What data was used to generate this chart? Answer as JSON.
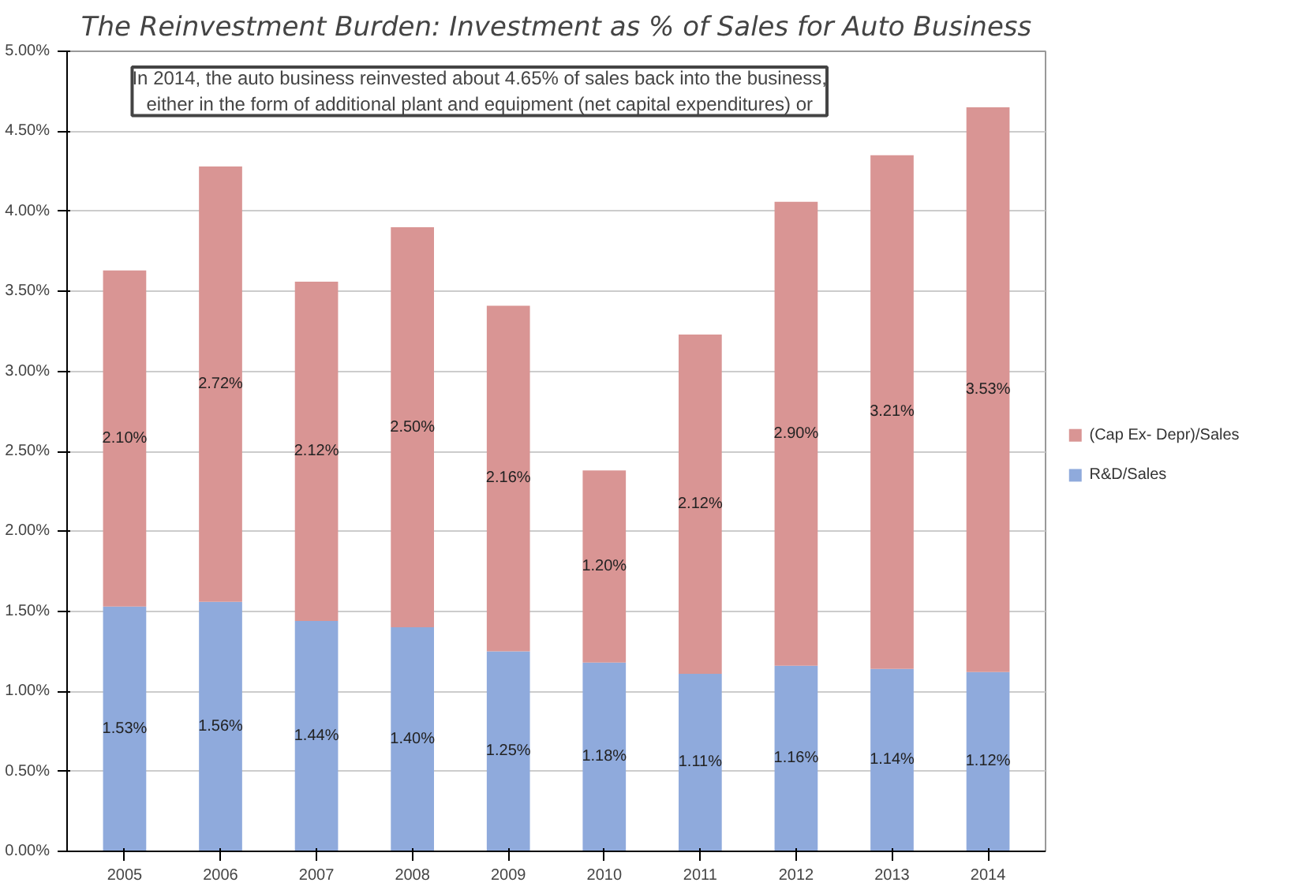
{
  "chart_data": {
    "type": "bar",
    "stacked": true,
    "title": "The Reinvestment Burden: Investment as % of Sales for Auto Business",
    "categories": [
      "2005",
      "2006",
      "2007",
      "2008",
      "2009",
      "2010",
      "2011",
      "2012",
      "2013",
      "2014"
    ],
    "series": [
      {
        "name": "R&D/Sales",
        "color": "#8faadc",
        "values": [
          1.53,
          1.56,
          1.44,
          1.4,
          1.25,
          1.18,
          1.11,
          1.16,
          1.14,
          1.12
        ],
        "value_labels": [
          "1.53%",
          "1.56%",
          "1.44%",
          "1.40%",
          "1.25%",
          "1.18%",
          "1.11%",
          "1.16%",
          "1.14%",
          "1.12%"
        ]
      },
      {
        "name": "(Cap Ex- Depr)/Sales",
        "color": "#d99594",
        "values": [
          2.1,
          2.72,
          2.12,
          2.5,
          2.16,
          1.2,
          2.12,
          2.9,
          3.21,
          3.53
        ],
        "value_labels": [
          "2.10%",
          "2.72%",
          "2.12%",
          "2.50%",
          "2.16%",
          "1.20%",
          "2.12%",
          "2.90%",
          "3.21%",
          "3.53%"
        ]
      }
    ],
    "ylim": [
      0,
      5
    ],
    "yticks": [
      {
        "value": 0,
        "label": "0.00%"
      },
      {
        "value": 0.5,
        "label": "0.50%"
      },
      {
        "value": 1,
        "label": "1.00%"
      },
      {
        "value": 1.5,
        "label": "1.50%"
      },
      {
        "value": 2,
        "label": "2.00%"
      },
      {
        "value": 2.5,
        "label": "2.50%"
      },
      {
        "value": 3,
        "label": "3.00%"
      },
      {
        "value": 3.5,
        "label": "3.50%"
      },
      {
        "value": 4,
        "label": "4.00%"
      },
      {
        "value": 4.5,
        "label": "4.50%"
      },
      {
        "value": 5,
        "label": "5.00%"
      }
    ],
    "grid": "y",
    "legend": "right",
    "annotations": [
      "In 2014, the auto business reinvested about 4.65% of sales back into the business,\neither in the form of additional plant and equipment (net capital expenditures) or"
    ]
  }
}
